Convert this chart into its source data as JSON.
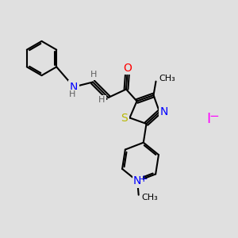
{
  "background_color": "#e0e0e0",
  "bond_color": "#000000",
  "bond_width": 1.5,
  "atom_colors": {
    "N": "#0000ff",
    "O": "#ff0000",
    "S": "#b8b800",
    "I": "#ff00ff",
    "C": "#000000",
    "H": "#606060"
  },
  "font_size": 9,
  "iodide_color": "#ff00ff"
}
